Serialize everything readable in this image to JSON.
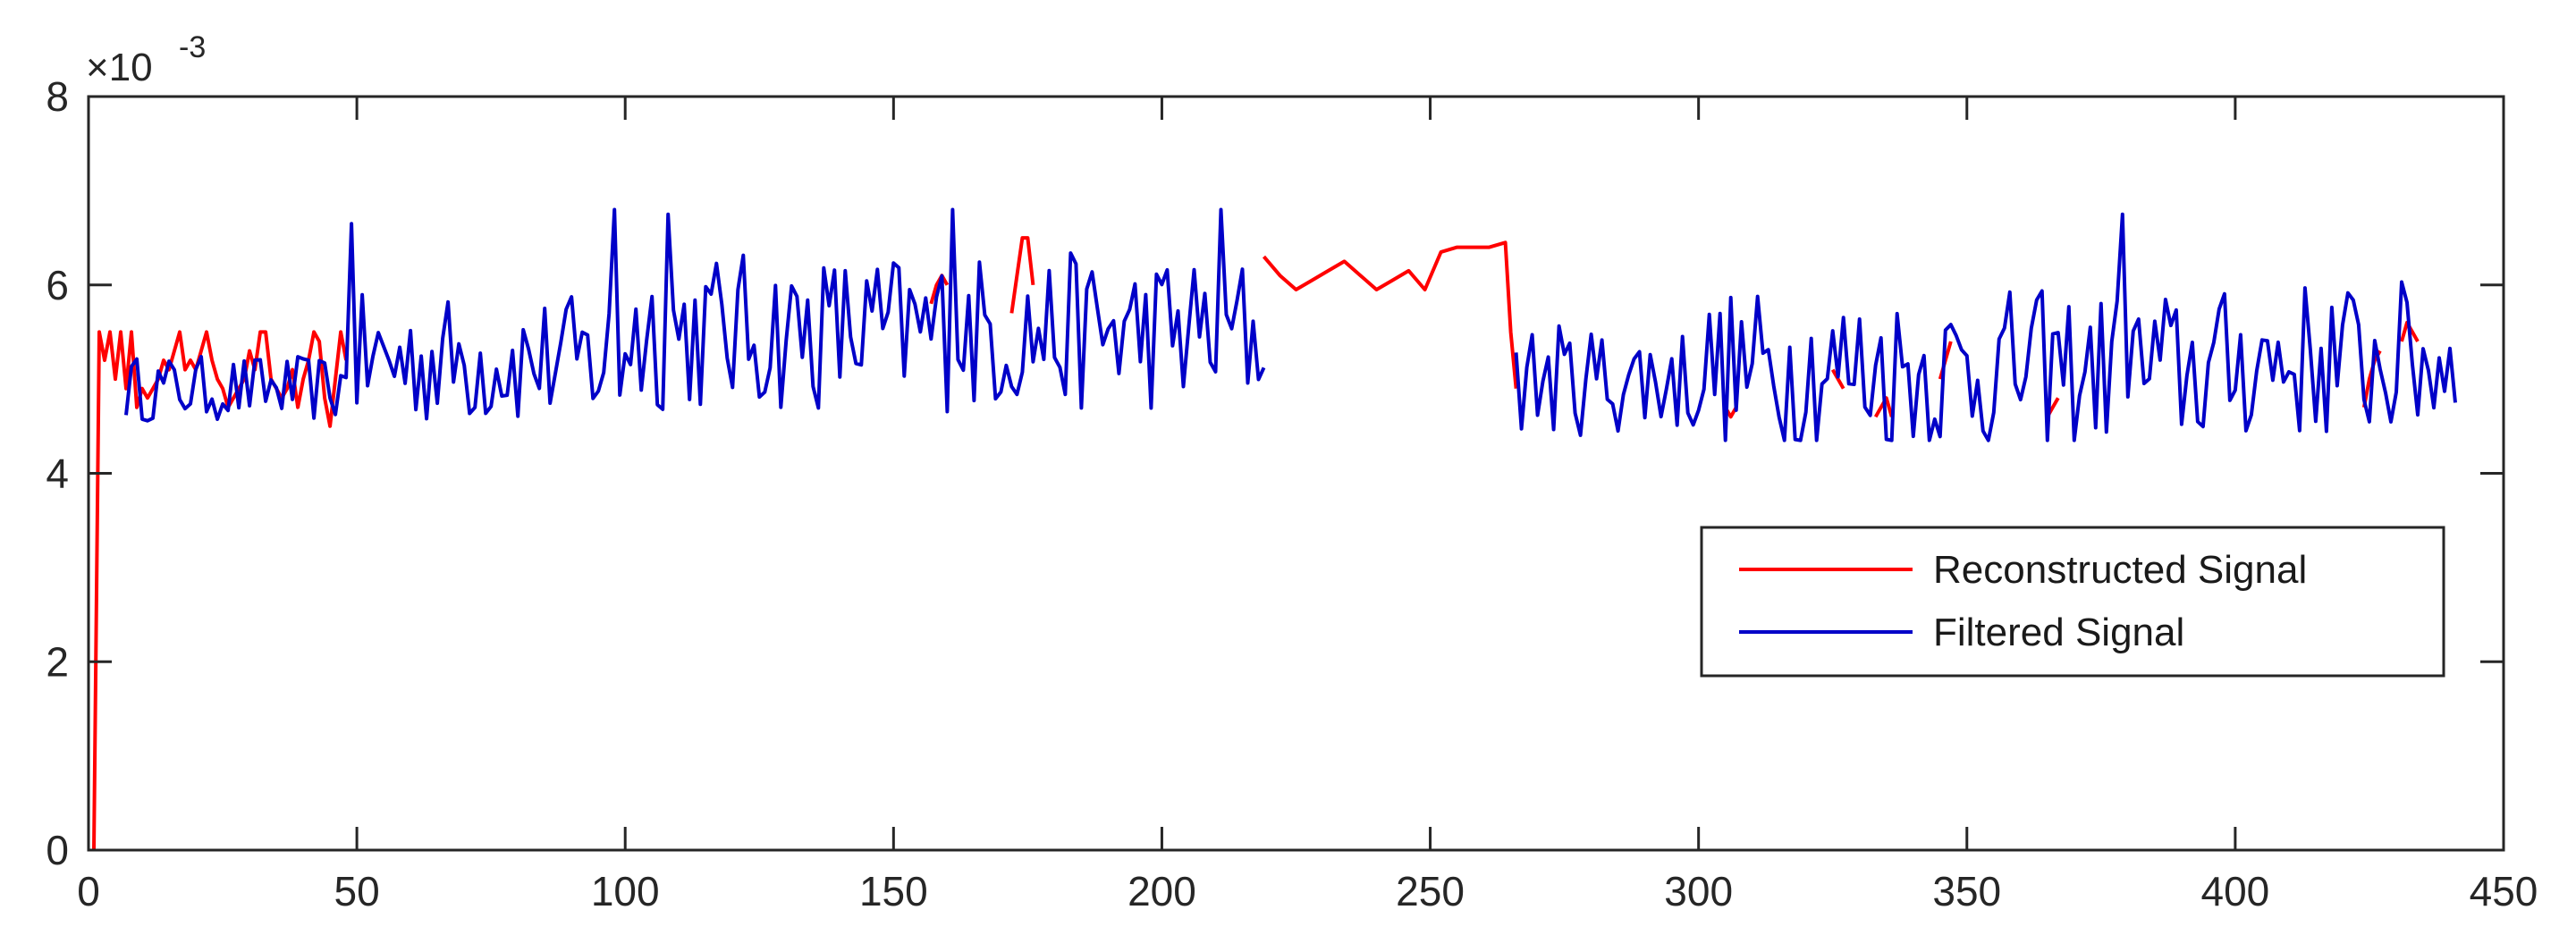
{
  "chart_data": {
    "type": "line",
    "title": "",
    "xlabel": "",
    "ylabel": "",
    "xlim": [
      0,
      450
    ],
    "ylim": [
      0,
      8
    ],
    "y_scale_exponent": "×10^-3",
    "y_multiplier_base": "×10",
    "y_multiplier_power": "-3",
    "x_ticks": [
      "0",
      "50",
      "100",
      "150",
      "200",
      "250",
      "300",
      "350",
      "400",
      "450"
    ],
    "y_ticks": [
      "0",
      "2",
      "4",
      "6",
      "8"
    ],
    "grid": false,
    "legend_position": "right",
    "series": [
      {
        "name": "Reconstructed Signal",
        "color": "#ff0000",
        "x": [
          1,
          2,
          3,
          4,
          5,
          6,
          7,
          8,
          9,
          10,
          11,
          12,
          13,
          14,
          15,
          16,
          17,
          18,
          19,
          20,
          21,
          22,
          23,
          24,
          25,
          26,
          27,
          28,
          29,
          30,
          31,
          32,
          33,
          34,
          35,
          36,
          37,
          38,
          39,
          40,
          41,
          42,
          43,
          44,
          45,
          46,
          47,
          48,
          157,
          158,
          159,
          160,
          172,
          173,
          174,
          175,
          176,
          219,
          222,
          225,
          228,
          231,
          234,
          237,
          240,
          243,
          246,
          249,
          252,
          255,
          258,
          261,
          264,
          265,
          266,
          305,
          306,
          307,
          325,
          326,
          327,
          333,
          334,
          335,
          336,
          345,
          346,
          347,
          365,
          366,
          367,
          424,
          425,
          426,
          427,
          431,
          432,
          433,
          434
        ],
        "y": [
          0,
          5.5,
          5.2,
          5.5,
          5.0,
          5.5,
          4.9,
          5.5,
          4.7,
          4.9,
          4.8,
          4.9,
          5.0,
          5.2,
          5.1,
          5.3,
          5.5,
          5.1,
          5.2,
          5.1,
          5.3,
          5.5,
          5.2,
          5.0,
          4.9,
          4.7,
          4.8,
          4.9,
          5.0,
          5.3,
          5.1,
          5.5,
          5.5,
          5.0,
          4.9,
          4.8,
          4.9,
          5.1,
          4.7,
          5.0,
          5.2,
          5.5,
          5.4,
          4.8,
          4.5,
          5.0,
          5.5,
          5.2,
          5.8,
          6.0,
          6.1,
          6.0,
          5.7,
          6.1,
          6.5,
          6.5,
          6.0,
          6.3,
          6.1,
          5.95,
          6.05,
          6.15,
          6.25,
          6.1,
          5.95,
          6.05,
          6.15,
          5.95,
          6.35,
          6.4,
          6.4,
          6.4,
          6.45,
          5.5,
          4.9,
          4.7,
          4.6,
          4.7,
          5.1,
          5.0,
          4.9,
          4.6,
          4.7,
          4.8,
          4.6,
          5.0,
          5.2,
          5.4,
          4.6,
          4.7,
          4.8,
          4.7,
          5.0,
          5.2,
          5.3,
          5.4,
          5.6,
          5.5,
          5.4
        ]
      },
      {
        "name": "Filtered Signal",
        "color": "#0000c8",
        "x": [],
        "y": []
      }
    ]
  }
}
